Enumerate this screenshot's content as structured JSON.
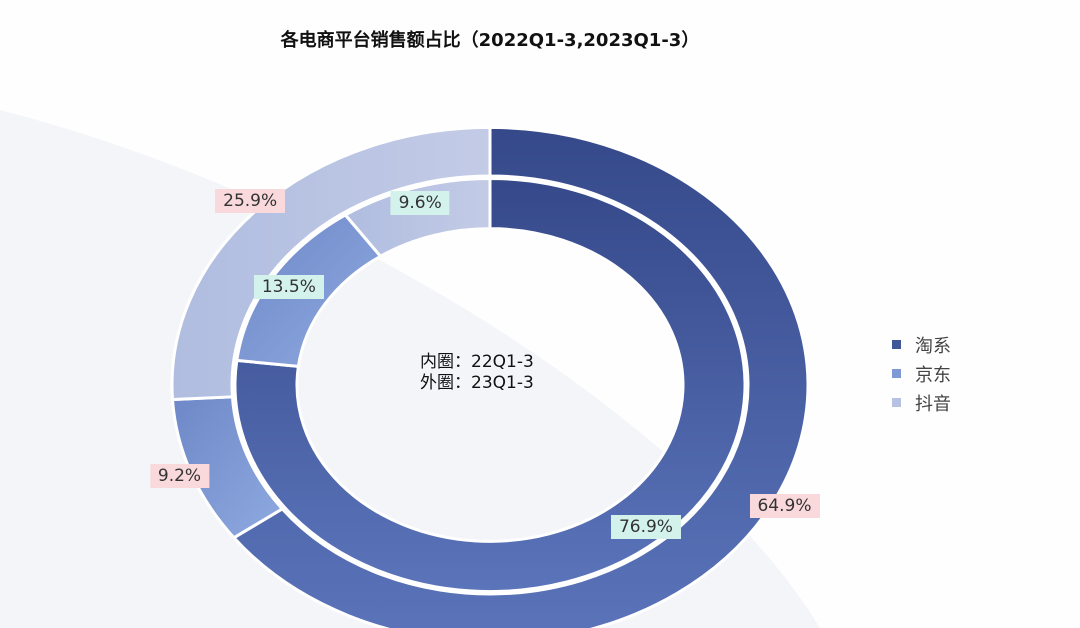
{
  "chart_data": {
    "type": "pie",
    "subtype": "nested-donut",
    "title": "各电商平台销售额占比（2022Q1-3,2023Q1-3）",
    "categories": [
      "淘系",
      "京东",
      "抖音"
    ],
    "colors": [
      "#3f5699",
      "#7f99d4",
      "#b7c2e2"
    ],
    "series": [
      {
        "name": "22Q1-3",
        "ring": "inner",
        "values": [
          76.9,
          13.5,
          9.6
        ],
        "labels": [
          "76.9%",
          "13.5%",
          "9.6%"
        ]
      },
      {
        "name": "23Q1-3",
        "ring": "outer",
        "values": [
          64.9,
          9.2,
          25.9
        ],
        "labels": [
          "64.9%",
          "9.2%",
          "25.9%"
        ]
      }
    ],
    "center_note": [
      "内圈：22Q1-3",
      "外圈：23Q1-3"
    ],
    "legend_position": "right"
  }
}
